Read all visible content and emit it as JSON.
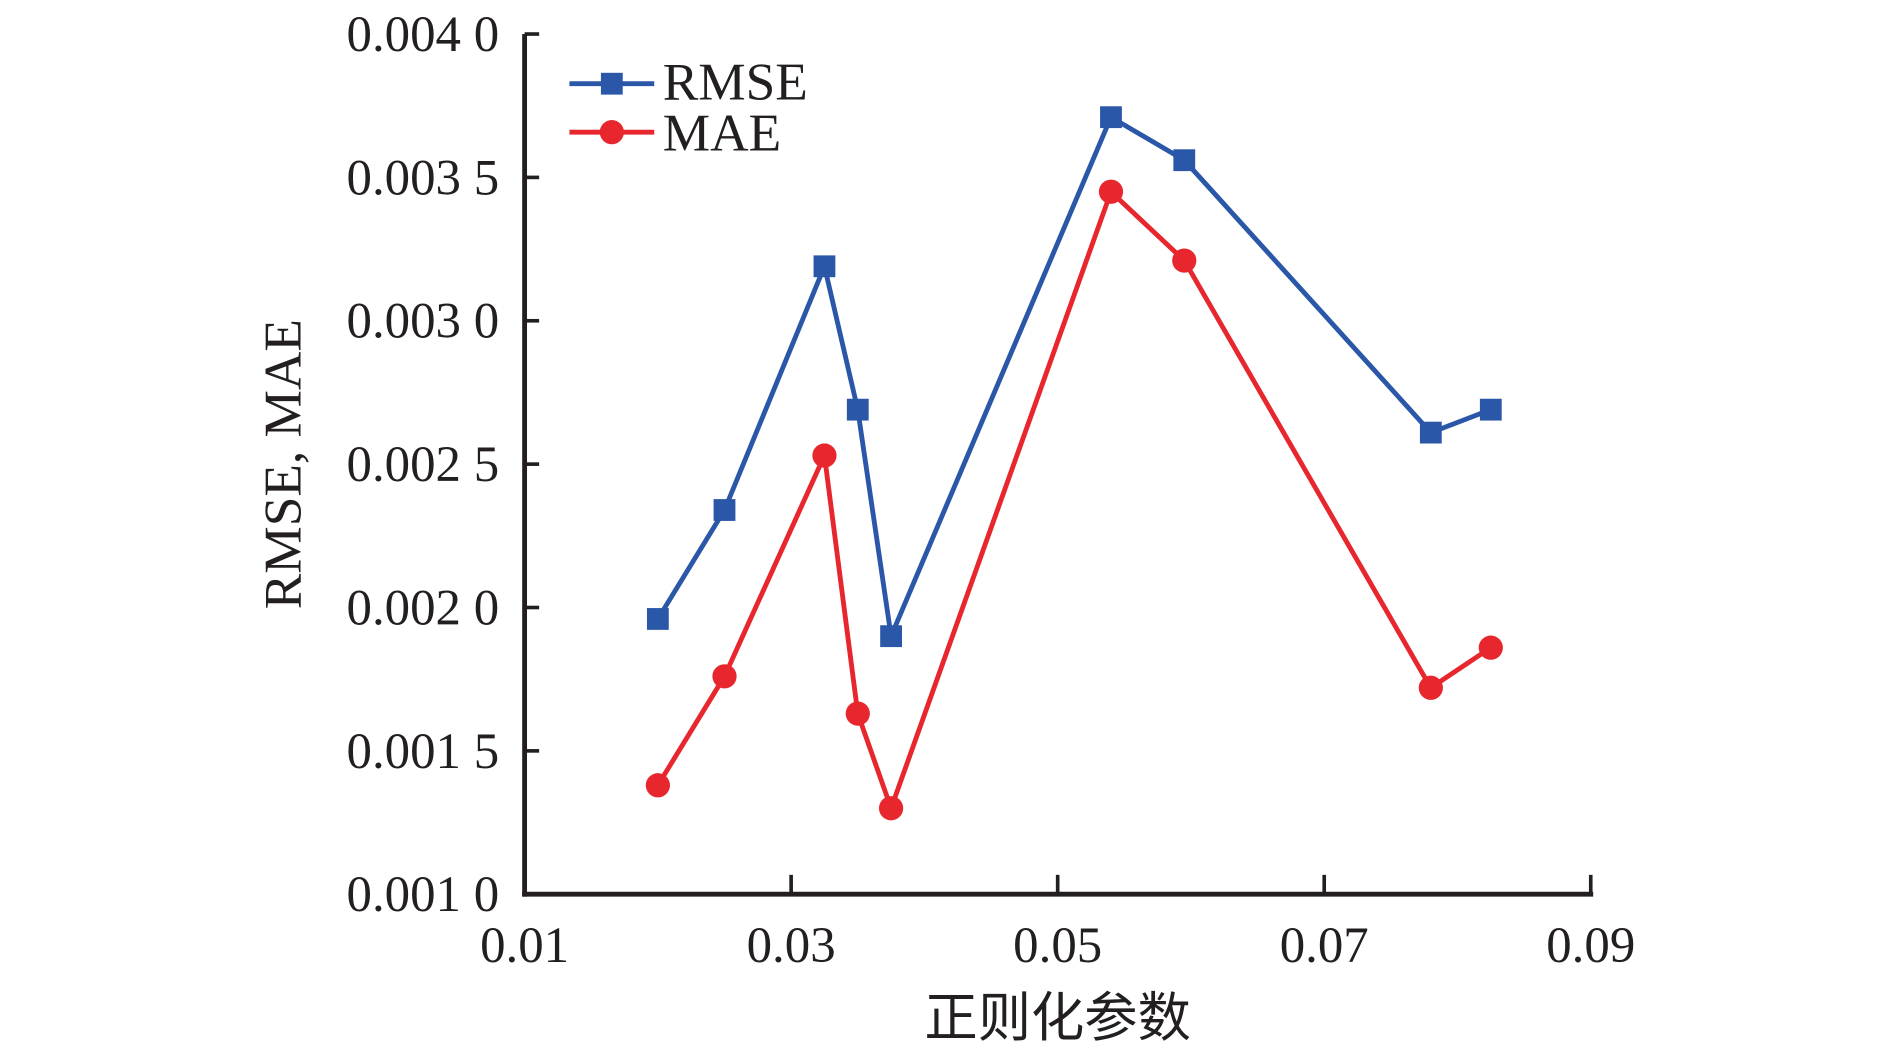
{
  "chart_data": {
    "type": "line",
    "title": "",
    "xlabel": "正则化参数",
    "ylabel": "RMSE, MAE",
    "xlim": [
      0.01,
      0.09
    ],
    "ylim": [
      0.001,
      0.004
    ],
    "xticks": [
      "0.01",
      "0.03",
      "0.05",
      "0.07",
      "0.09"
    ],
    "xtick_values": [
      0.01,
      0.03,
      0.05,
      0.07,
      0.09
    ],
    "yticks": [
      "0.001 0",
      "0.001 5",
      "0.002 0",
      "0.002 5",
      "0.003 0",
      "0.003 5",
      "0.004 0"
    ],
    "ytick_values": [
      0.001,
      0.0015,
      0.002,
      0.0025,
      0.003,
      0.0035,
      0.004
    ],
    "grid": false,
    "legend_position": "top-left",
    "x": [
      0.02,
      0.025,
      0.0325,
      0.035,
      0.0375,
      0.054,
      0.0595,
      0.078,
      0.0825
    ],
    "series": [
      {
        "name": "RMSE",
        "color": "#2b57a8",
        "marker": "square",
        "values": [
          0.00196,
          0.00234,
          0.00319,
          0.00269,
          0.0019,
          0.00371,
          0.00356,
          0.00261,
          0.00269
        ]
      },
      {
        "name": "MAE",
        "color": "#e8262d",
        "marker": "circle",
        "values": [
          0.00138,
          0.00176,
          0.00253,
          0.00163,
          0.0013,
          0.00345,
          0.00321,
          0.00172,
          0.00186
        ]
      }
    ]
  }
}
